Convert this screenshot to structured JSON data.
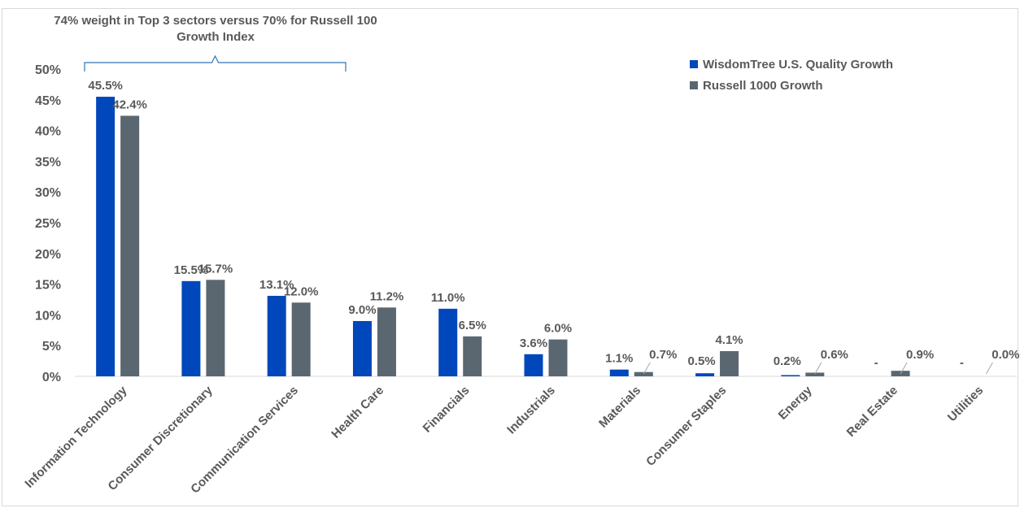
{
  "chart_data": {
    "type": "bar",
    "annotation": "74% weight in Top 3 sectors versus 70% for Russell 100 Growth Index",
    "categories": [
      "Information Technology",
      "Consumer Discretionary",
      "Communication Services",
      "Health Care",
      "Financials",
      "Industrials",
      "Materials",
      "Consumer Staples",
      "Energy",
      "Real Estate",
      "Utilities"
    ],
    "series": [
      {
        "name": "WisdomTree U.S. Quality Growth",
        "color": "#0047bb",
        "values": [
          45.5,
          15.5,
          13.1,
          9.0,
          11.0,
          3.6,
          1.1,
          0.5,
          0.2,
          0,
          0
        ],
        "labels": [
          "45.5%",
          "15.5%",
          "13.1%",
          "9.0%",
          "11.0%",
          "3.6%",
          "1.1%",
          "0.5%",
          "0.2%",
          "-",
          "-"
        ]
      },
      {
        "name": "Russell 1000 Growth",
        "color": "#5b6770",
        "values": [
          42.4,
          15.7,
          12.0,
          11.2,
          6.5,
          6.0,
          0.7,
          4.1,
          0.6,
          0.9,
          0.0
        ],
        "labels": [
          "42.4%",
          "15.7%",
          "12.0%",
          "11.2%",
          "6.5%",
          "6.0%",
          "0.7%",
          "4.1%",
          "0.6%",
          "0.9%",
          "0.0%"
        ]
      }
    ],
    "yticks": [
      "0%",
      "5%",
      "10%",
      "15%",
      "20%",
      "25%",
      "30%",
      "35%",
      "40%",
      "45%",
      "50%"
    ],
    "ylim": [
      0,
      50
    ],
    "grid": false,
    "legend_position": "top-right"
  }
}
